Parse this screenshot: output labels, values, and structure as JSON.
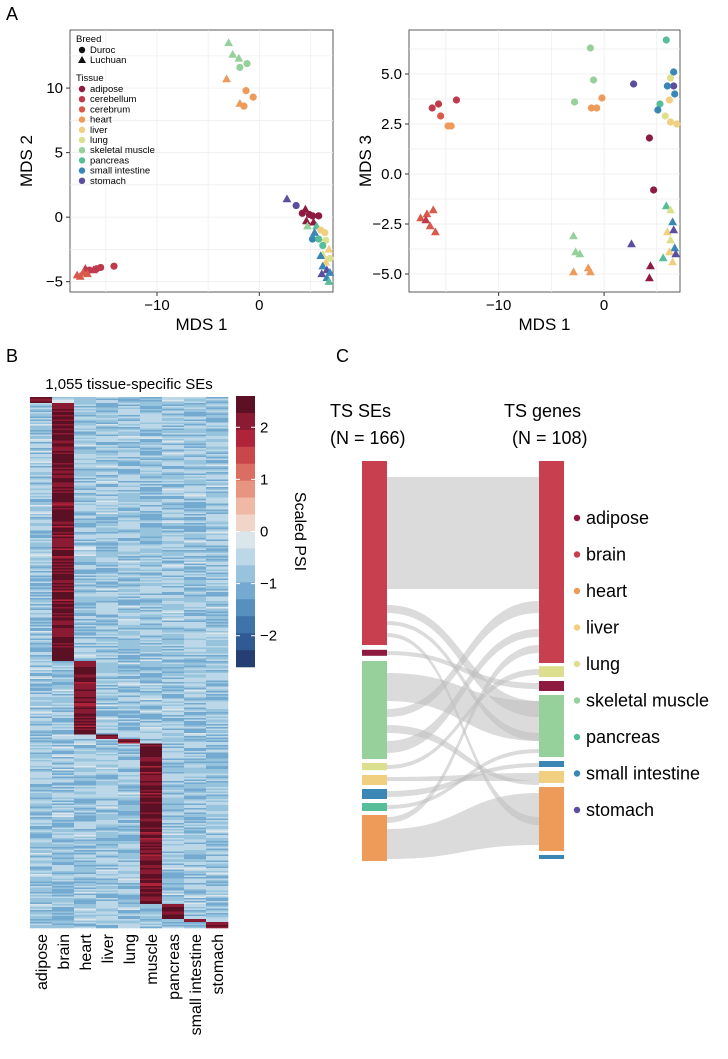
{
  "panel_labels": {
    "a": "A",
    "b": "B",
    "c": "C"
  },
  "colors": {
    "adipose": "#8E1B3F",
    "cerebellum": "#C03A4E",
    "cerebrum": "#D9594B",
    "heart": "#EE9A59",
    "liver": "#F1CF80",
    "lung": "#DCE08E",
    "skeletal muscle": "#96D19C",
    "pancreas": "#57BE9A",
    "small intestine": "#3A87B5",
    "stomach": "#5A4E9E",
    "brain": "#C8404F",
    "grey_flow": "#BDBDBD"
  },
  "chart_data": [
    {
      "id": "mds12",
      "type": "scatter",
      "xlabel": "MDS 1",
      "ylabel": "MDS 2",
      "xlim": [
        -18.5,
        7.2
      ],
      "ylim": [
        -5.8,
        14.5
      ],
      "xticks": [
        {
          "v": -10,
          "t": "−10"
        },
        {
          "v": 0,
          "t": "0"
        }
      ],
      "yticks": [
        {
          "v": -5,
          "t": "−5"
        },
        {
          "v": 0,
          "t": "0"
        },
        {
          "v": 5,
          "t": "5"
        },
        {
          "v": 10,
          "t": "10"
        }
      ],
      "legend": {
        "breed_title": "Breed",
        "breeds": [
          {
            "name": "Duroc",
            "shape": "circle"
          },
          {
            "name": "Luchuan",
            "shape": "triangle"
          }
        ],
        "tissue_title": "Tissue",
        "tissues": [
          "adipose",
          "cerebellum",
          "cerebrum",
          "heart",
          "liver",
          "lung",
          "skeletal muscle",
          "pancreas",
          "small intestine",
          "stomach"
        ]
      },
      "points": [
        {
          "x": -15.5,
          "y": -3.9,
          "t": "cerebellum",
          "s": "c"
        },
        {
          "x": -14.2,
          "y": -3.8,
          "t": "cerebellum",
          "s": "c"
        },
        {
          "x": -15.9,
          "y": -4.0,
          "t": "cerebellum",
          "s": "c"
        },
        {
          "x": -16.6,
          "y": -4.1,
          "t": "cerebellum",
          "s": "c"
        },
        {
          "x": -17.0,
          "y": -4.0,
          "t": "cerebellum",
          "s": "t"
        },
        {
          "x": -16.2,
          "y": -4.1,
          "t": "cerebellum",
          "s": "t"
        },
        {
          "x": -17.2,
          "y": -4.3,
          "t": "cerebrum",
          "s": "t"
        },
        {
          "x": -17.5,
          "y": -4.6,
          "t": "cerebrum",
          "s": "t"
        },
        {
          "x": -16.8,
          "y": -4.4,
          "t": "cerebrum",
          "s": "t"
        },
        {
          "x": -17.8,
          "y": -4.5,
          "t": "cerebrum",
          "s": "t"
        },
        {
          "x": -3.0,
          "y": 13.5,
          "t": "skeletal muscle",
          "s": "t"
        },
        {
          "x": -2.6,
          "y": 12.6,
          "t": "skeletal muscle",
          "s": "t"
        },
        {
          "x": -2.0,
          "y": 12.3,
          "t": "skeletal muscle",
          "s": "t"
        },
        {
          "x": -1.2,
          "y": 11.9,
          "t": "skeletal muscle",
          "s": "c"
        },
        {
          "x": -1.9,
          "y": 11.6,
          "t": "skeletal muscle",
          "s": "c"
        },
        {
          "x": -3.2,
          "y": 10.7,
          "t": "heart",
          "s": "t"
        },
        {
          "x": -1.3,
          "y": 9.8,
          "t": "heart",
          "s": "c"
        },
        {
          "x": -0.6,
          "y": 9.3,
          "t": "heart",
          "s": "c"
        },
        {
          "x": -1.5,
          "y": 8.6,
          "t": "heart",
          "s": "c"
        },
        {
          "x": -1.9,
          "y": 8.8,
          "t": "heart",
          "s": "t"
        },
        {
          "x": 2.7,
          "y": 1.4,
          "t": "stomach",
          "s": "t"
        },
        {
          "x": 3.6,
          "y": 0.9,
          "t": "stomach",
          "s": "c"
        },
        {
          "x": 4.5,
          "y": 0.6,
          "t": "adipose",
          "s": "t"
        },
        {
          "x": 4.2,
          "y": 0.3,
          "t": "adipose",
          "s": "c"
        },
        {
          "x": 4.9,
          "y": 0.2,
          "t": "adipose",
          "s": "c"
        },
        {
          "x": 5.2,
          "y": 0.1,
          "t": "adipose",
          "s": "c"
        },
        {
          "x": 5.8,
          "y": 0.1,
          "t": "adipose",
          "s": "c"
        },
        {
          "x": 4.6,
          "y": -0.3,
          "t": "adipose",
          "s": "t"
        },
        {
          "x": 4.7,
          "y": -0.7,
          "t": "skeletal muscle",
          "s": "t"
        },
        {
          "x": 5.3,
          "y": -0.4,
          "t": "adipose",
          "s": "t"
        },
        {
          "x": 5.6,
          "y": -0.7,
          "t": "pancreas",
          "s": "t"
        },
        {
          "x": 6.0,
          "y": -1.0,
          "t": "liver",
          "s": "c"
        },
        {
          "x": 5.4,
          "y": -1.2,
          "t": "small intestine",
          "s": "t"
        },
        {
          "x": 6.4,
          "y": -1.2,
          "t": "liver",
          "s": "c"
        },
        {
          "x": 5.2,
          "y": -1.7,
          "t": "small intestine",
          "s": "c"
        },
        {
          "x": 6.5,
          "y": -1.8,
          "t": "lung",
          "s": "c"
        },
        {
          "x": 5.8,
          "y": -1.7,
          "t": "pancreas",
          "s": "c"
        },
        {
          "x": 6.2,
          "y": -2.2,
          "t": "pancreas",
          "s": "c"
        },
        {
          "x": 6.8,
          "y": -2.5,
          "t": "liver",
          "s": "t"
        },
        {
          "x": 6.2,
          "y": -2.9,
          "t": "lung",
          "s": "t"
        },
        {
          "x": 6.9,
          "y": -3.2,
          "t": "lung",
          "s": "c"
        },
        {
          "x": 6.0,
          "y": -3.0,
          "t": "small intestine",
          "s": "t"
        },
        {
          "x": 6.5,
          "y": -3.5,
          "t": "liver",
          "s": "t"
        },
        {
          "x": 6.2,
          "y": -3.8,
          "t": "small intestine",
          "s": "t"
        },
        {
          "x": 6.6,
          "y": -4.1,
          "t": "stomach",
          "s": "t"
        },
        {
          "x": 6.9,
          "y": -4.3,
          "t": "small intestine",
          "s": "t"
        },
        {
          "x": 6.1,
          "y": -4.4,
          "t": "stomach",
          "s": "t"
        },
        {
          "x": 6.6,
          "y": -4.7,
          "t": "small intestine",
          "s": "t"
        },
        {
          "x": 6.8,
          "y": -5.0,
          "t": "pancreas",
          "s": "t"
        }
      ]
    },
    {
      "id": "mds13",
      "type": "scatter",
      "xlabel": "MDS 1",
      "ylabel": "MDS 3",
      "xlim": [
        -18.5,
        7.2
      ],
      "ylim": [
        -5.9,
        7.2
      ],
      "xticks": [
        {
          "v": -10,
          "t": "−10"
        },
        {
          "v": 0,
          "t": "0"
        }
      ],
      "yticks": [
        {
          "v": -5,
          "t": "−5.0"
        },
        {
          "v": -2.5,
          "t": "−2.5"
        },
        {
          "v": 0,
          "t": "0.0"
        },
        {
          "v": 2.5,
          "t": "2.5"
        },
        {
          "v": 5,
          "t": "5.0"
        }
      ],
      "points": [
        {
          "x": -16.3,
          "y": 3.3,
          "t": "cerebellum",
          "s": "c"
        },
        {
          "x": -15.7,
          "y": 3.5,
          "t": "cerebellum",
          "s": "c"
        },
        {
          "x": -14.0,
          "y": 3.7,
          "t": "cerebellum",
          "s": "c"
        },
        {
          "x": -15.5,
          "y": 2.9,
          "t": "cerebrum",
          "s": "c"
        },
        {
          "x": -14.8,
          "y": 2.4,
          "t": "heart",
          "s": "c"
        },
        {
          "x": -14.5,
          "y": 2.4,
          "t": "heart",
          "s": "c"
        },
        {
          "x": -17.4,
          "y": -2.2,
          "t": "cerebrum",
          "s": "t"
        },
        {
          "x": -16.8,
          "y": -2.0,
          "t": "cerebrum",
          "s": "t"
        },
        {
          "x": -16.2,
          "y": -1.8,
          "t": "cerebrum",
          "s": "t"
        },
        {
          "x": -16.9,
          "y": -2.3,
          "t": "cerebellum",
          "s": "t"
        },
        {
          "x": -16.5,
          "y": -2.6,
          "t": "cerebrum",
          "s": "t"
        },
        {
          "x": -16.0,
          "y": -2.9,
          "t": "cerebrum",
          "s": "t"
        },
        {
          "x": -1.3,
          "y": 6.3,
          "t": "skeletal muscle",
          "s": "c"
        },
        {
          "x": -1.0,
          "y": 4.7,
          "t": "skeletal muscle",
          "s": "c"
        },
        {
          "x": -2.8,
          "y": 3.6,
          "t": "skeletal muscle",
          "s": "c"
        },
        {
          "x": -0.2,
          "y": 3.8,
          "t": "heart",
          "s": "c"
        },
        {
          "x": -1.2,
          "y": 3.3,
          "t": "heart",
          "s": "c"
        },
        {
          "x": -0.7,
          "y": 3.3,
          "t": "heart",
          "s": "c"
        },
        {
          "x": -2.9,
          "y": -3.1,
          "t": "skeletal muscle",
          "s": "t"
        },
        {
          "x": -2.7,
          "y": -3.9,
          "t": "skeletal muscle",
          "s": "t"
        },
        {
          "x": -2.3,
          "y": -4.0,
          "t": "skeletal muscle",
          "s": "t"
        },
        {
          "x": -2.9,
          "y": -4.9,
          "t": "heart",
          "s": "t"
        },
        {
          "x": -1.5,
          "y": -4.7,
          "t": "heart",
          "s": "t"
        },
        {
          "x": -1.3,
          "y": -4.9,
          "t": "heart",
          "s": "t"
        },
        {
          "x": 2.8,
          "y": 4.5,
          "t": "stomach",
          "s": "c"
        },
        {
          "x": 2.6,
          "y": -3.5,
          "t": "stomach",
          "s": "t"
        },
        {
          "x": 4.3,
          "y": 1.8,
          "t": "adipose",
          "s": "c"
        },
        {
          "x": 4.7,
          "y": -0.8,
          "t": "adipose",
          "s": "c"
        },
        {
          "x": 4.4,
          "y": -4.6,
          "t": "adipose",
          "s": "t"
        },
        {
          "x": 4.3,
          "y": -5.2,
          "t": "adipose",
          "s": "t"
        },
        {
          "x": 5.9,
          "y": 6.7,
          "t": "pancreas",
          "s": "c"
        },
        {
          "x": 6.6,
          "y": 5.1,
          "t": "small intestine",
          "s": "c"
        },
        {
          "x": 6.3,
          "y": 4.8,
          "t": "lung",
          "s": "c"
        },
        {
          "x": 6.6,
          "y": 4.4,
          "t": "stomach",
          "s": "c"
        },
        {
          "x": 6.0,
          "y": 4.4,
          "t": "small intestine",
          "s": "c"
        },
        {
          "x": 6.7,
          "y": 4.0,
          "t": "small intestine",
          "s": "c"
        },
        {
          "x": 6.2,
          "y": 3.7,
          "t": "liver",
          "s": "c"
        },
        {
          "x": 5.3,
          "y": 3.5,
          "t": "pancreas",
          "s": "c"
        },
        {
          "x": 5.1,
          "y": 3.2,
          "t": "small intestine",
          "s": "c"
        },
        {
          "x": 5.8,
          "y": 2.9,
          "t": "lung",
          "s": "c"
        },
        {
          "x": 6.3,
          "y": 2.6,
          "t": "liver",
          "s": "c"
        },
        {
          "x": 6.9,
          "y": 2.5,
          "t": "liver",
          "s": "c"
        },
        {
          "x": 5.9,
          "y": -1.6,
          "t": "pancreas",
          "s": "t"
        },
        {
          "x": 6.3,
          "y": -1.8,
          "t": "lung",
          "s": "t"
        },
        {
          "x": 6.5,
          "y": -2.4,
          "t": "small intestine",
          "s": "t"
        },
        {
          "x": 6.0,
          "y": -2.9,
          "t": "liver",
          "s": "t"
        },
        {
          "x": 6.6,
          "y": -2.8,
          "t": "stomach",
          "s": "t"
        },
        {
          "x": 6.3,
          "y": -3.3,
          "t": "lung",
          "s": "t"
        },
        {
          "x": 6.7,
          "y": -3.7,
          "t": "small intestine",
          "s": "t"
        },
        {
          "x": 6.2,
          "y": -3.9,
          "t": "liver",
          "s": "t"
        },
        {
          "x": 6.8,
          "y": -4.0,
          "t": "stomach",
          "s": "t"
        },
        {
          "x": 5.6,
          "y": -4.2,
          "t": "pancreas",
          "s": "t"
        },
        {
          "x": 6.5,
          "y": -4.4,
          "t": "liver",
          "s": "t"
        }
      ]
    },
    {
      "id": "heatmap",
      "type": "heatmap",
      "title": "1,055 tissue-specific SEs",
      "columns": [
        "adipose",
        "brain",
        "heart",
        "liver",
        "lung",
        "muscle",
        "pancreas",
        "small intestine",
        "stomach"
      ],
      "blocks": [
        {
          "col": 0,
          "from": 0,
          "to": 0.012
        },
        {
          "col": 1,
          "from": 0.012,
          "to": 0.498
        },
        {
          "col": 2,
          "from": 0.498,
          "to": 0.636
        },
        {
          "col": 3,
          "from": 0.636,
          "to": 0.644
        },
        {
          "col": 4,
          "from": 0.644,
          "to": 0.652
        },
        {
          "col": 5,
          "from": 0.652,
          "to": 0.955
        },
        {
          "col": 6,
          "from": 0.955,
          "to": 0.982
        },
        {
          "col": 7,
          "from": 0.982,
          "to": 0.99
        },
        {
          "col": 8,
          "from": 0.99,
          "to": 1.0
        }
      ],
      "scale": {
        "title": "Scaled PSI",
        "min": -2.6,
        "max": 2.6,
        "ticks": [
          {
            "v": 2,
            "t": "2"
          },
          {
            "v": 1,
            "t": "1"
          },
          {
            "v": 0,
            "t": "0"
          },
          {
            "v": -1,
            "t": "−1"
          },
          {
            "v": -2,
            "t": "−2"
          }
        ],
        "colors": [
          "#5C1023",
          "#8B1A33",
          "#B0243A",
          "#C9464A",
          "#DB6E63",
          "#E79580",
          "#EFB9A5",
          "#F2D5C9",
          "#DBE5EC",
          "#BCD8E8",
          "#98C3DD",
          "#74AACF",
          "#5590BE",
          "#3F74AB",
          "#2F5A93",
          "#263F72"
        ]
      }
    },
    {
      "id": "sankey",
      "type": "sankey",
      "left_title": [
        "TS SEs",
        "(N = 166)"
      ],
      "right_title": [
        "TS genes",
        "(N = 108)"
      ],
      "legend": [
        "adipose",
        "brain",
        "heart",
        "liver",
        "lung",
        "skeletal muscle",
        "pancreas",
        "small intestine",
        "stomach"
      ],
      "left": [
        {
          "tissue": "brain",
          "from": 0,
          "to": 0.46
        },
        {
          "tissue": "adipose",
          "from": 0.472,
          "to": 0.487
        },
        {
          "tissue": "skeletal muscle",
          "from": 0.5,
          "to": 0.745
        },
        {
          "tissue": "lung",
          "from": 0.755,
          "to": 0.773
        },
        {
          "tissue": "liver",
          "from": 0.785,
          "to": 0.81
        },
        {
          "tissue": "small intestine",
          "from": 0.82,
          "to": 0.845
        },
        {
          "tissue": "pancreas",
          "from": 0.855,
          "to": 0.875
        },
        {
          "tissue": "heart",
          "from": 0.885,
          "to": 1.0
        }
      ],
      "right": [
        {
          "tissue": "brain",
          "from": 0,
          "to": 0.505
        },
        {
          "tissue": "lung",
          "from": 0.513,
          "to": 0.54
        },
        {
          "tissue": "adipose",
          "from": 0.55,
          "to": 0.575
        },
        {
          "tissue": "skeletal muscle",
          "from": 0.585,
          "to": 0.74
        },
        {
          "tissue": "small intestine",
          "from": 0.75,
          "to": 0.765
        },
        {
          "tissue": "liver",
          "from": 0.775,
          "to": 0.805
        },
        {
          "tissue": "heart",
          "from": 0.815,
          "to": 0.975
        },
        {
          "tissue": "small intestine",
          "from": 0.985,
          "to": 0.995
        }
      ],
      "flows": [
        {
          "l": [
            0.04,
            0.32
          ],
          "r": [
            0.04,
            0.32
          ]
        },
        {
          "l": [
            0.36,
            0.38
          ],
          "r": [
            0.6,
            0.64
          ]
        },
        {
          "l": [
            0.4,
            0.41
          ],
          "r": [
            0.68,
            0.7
          ]
        },
        {
          "l": [
            0.43,
            0.44
          ],
          "r": [
            0.89,
            0.91
          ]
        },
        {
          "l": [
            0.475,
            0.485
          ],
          "r": [
            0.555,
            0.57
          ]
        },
        {
          "l": [
            0.53,
            0.6
          ],
          "r": [
            0.6,
            0.7
          ]
        },
        {
          "l": [
            0.62,
            0.64
          ],
          "r": [
            0.35,
            0.38
          ]
        },
        {
          "l": [
            0.66,
            0.68
          ],
          "r": [
            0.8,
            0.81
          ]
        },
        {
          "l": [
            0.7,
            0.73
          ],
          "r": [
            0.42,
            0.44
          ]
        },
        {
          "l": [
            0.76,
            0.77
          ],
          "r": [
            0.52,
            0.535
          ]
        },
        {
          "l": [
            0.79,
            0.8
          ],
          "r": [
            0.78,
            0.8
          ]
        },
        {
          "l": [
            0.825,
            0.84
          ],
          "r": [
            0.755,
            0.765
          ]
        },
        {
          "l": [
            0.86,
            0.87
          ],
          "r": [
            0.72,
            0.73
          ]
        },
        {
          "l": [
            0.89,
            0.905
          ],
          "r": [
            0.46,
            0.48
          ]
        },
        {
          "l": [
            0.92,
            0.995
          ],
          "r": [
            0.83,
            0.96
          ]
        }
      ]
    }
  ]
}
